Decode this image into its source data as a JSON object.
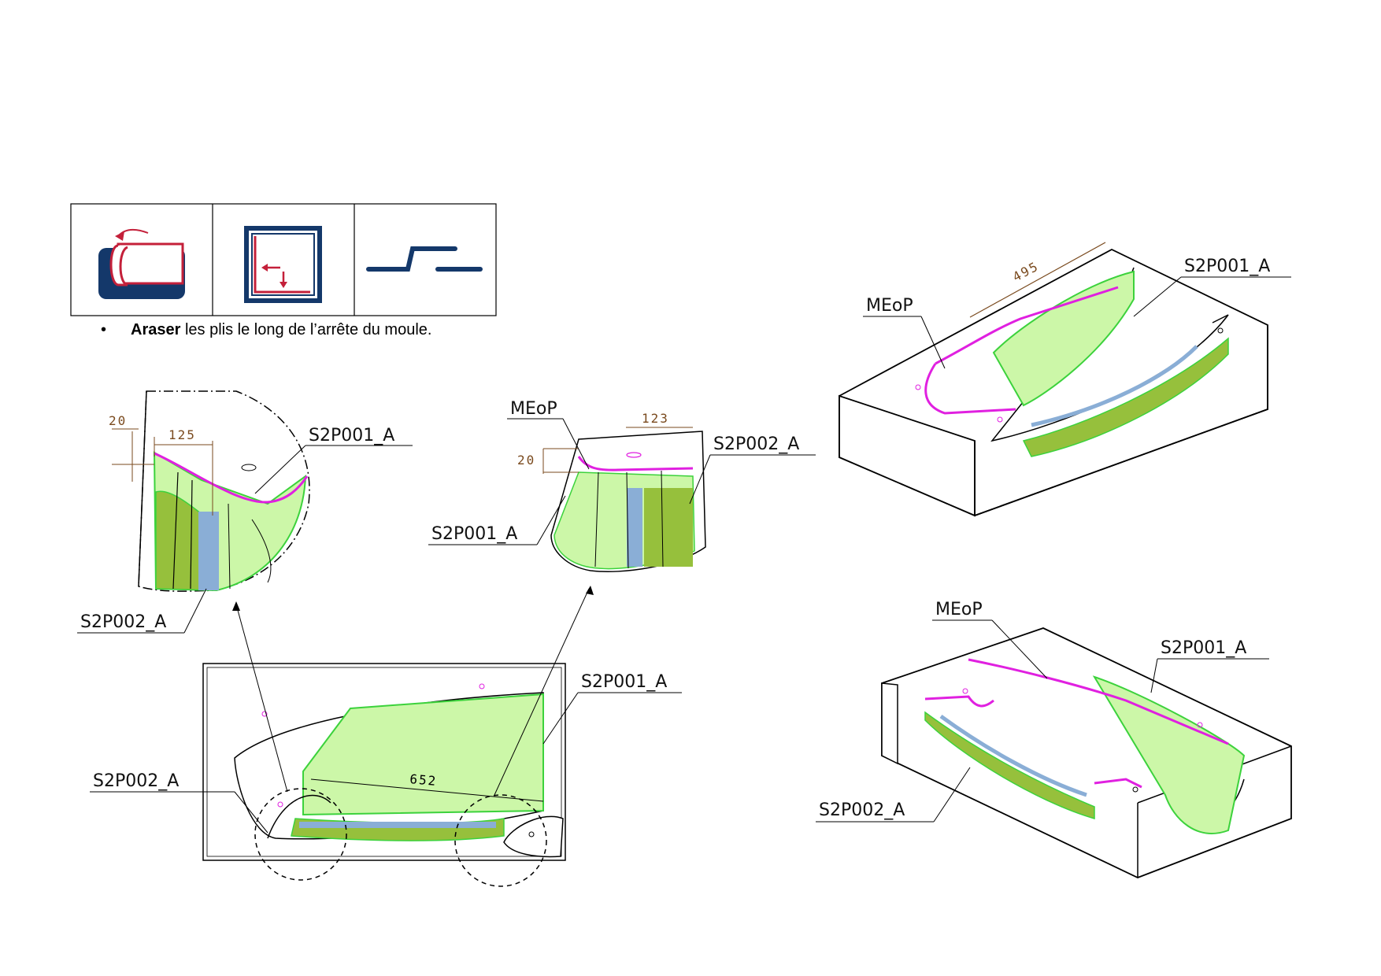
{
  "icons": [
    "fold-back-icon",
    "trim-corner-icon",
    "step-joggle-icon"
  ],
  "bullet": {
    "symbol": "•",
    "bold": "Araser",
    "text": " les plis le long de l’arrête du moule."
  },
  "colors": {
    "ply_light": "#ccf7a8",
    "ply_dark": "#96c03c",
    "ply_edge": "#3cd23c",
    "meop": "#e020e0",
    "dim": "#7a4a1e",
    "blue_strip": "#8aaed6"
  },
  "views": {
    "detail_left": {
      "dim_20": "20",
      "dim_125": "125",
      "label_s2p001": "S2P001_A",
      "label_s2p002": "S2P002_A"
    },
    "detail_center": {
      "label_meop": "MEoP",
      "dim_123": "123",
      "dim_20": "20",
      "label_s2p002": "S2P002_A",
      "label_s2p001": "S2P001_A"
    },
    "top_view": {
      "label_s2p001": "S2P001_A",
      "label_s2p002": "S2P002_A",
      "dim_652": "652"
    },
    "iso_top": {
      "label_meop": "MEoP",
      "dim_495": "495",
      "label_s2p001": "S2P001_A"
    },
    "iso_bottom": {
      "label_meop": "MEoP",
      "label_s2p001": "S2P001_A",
      "label_s2p002": "S2P002_A"
    }
  }
}
